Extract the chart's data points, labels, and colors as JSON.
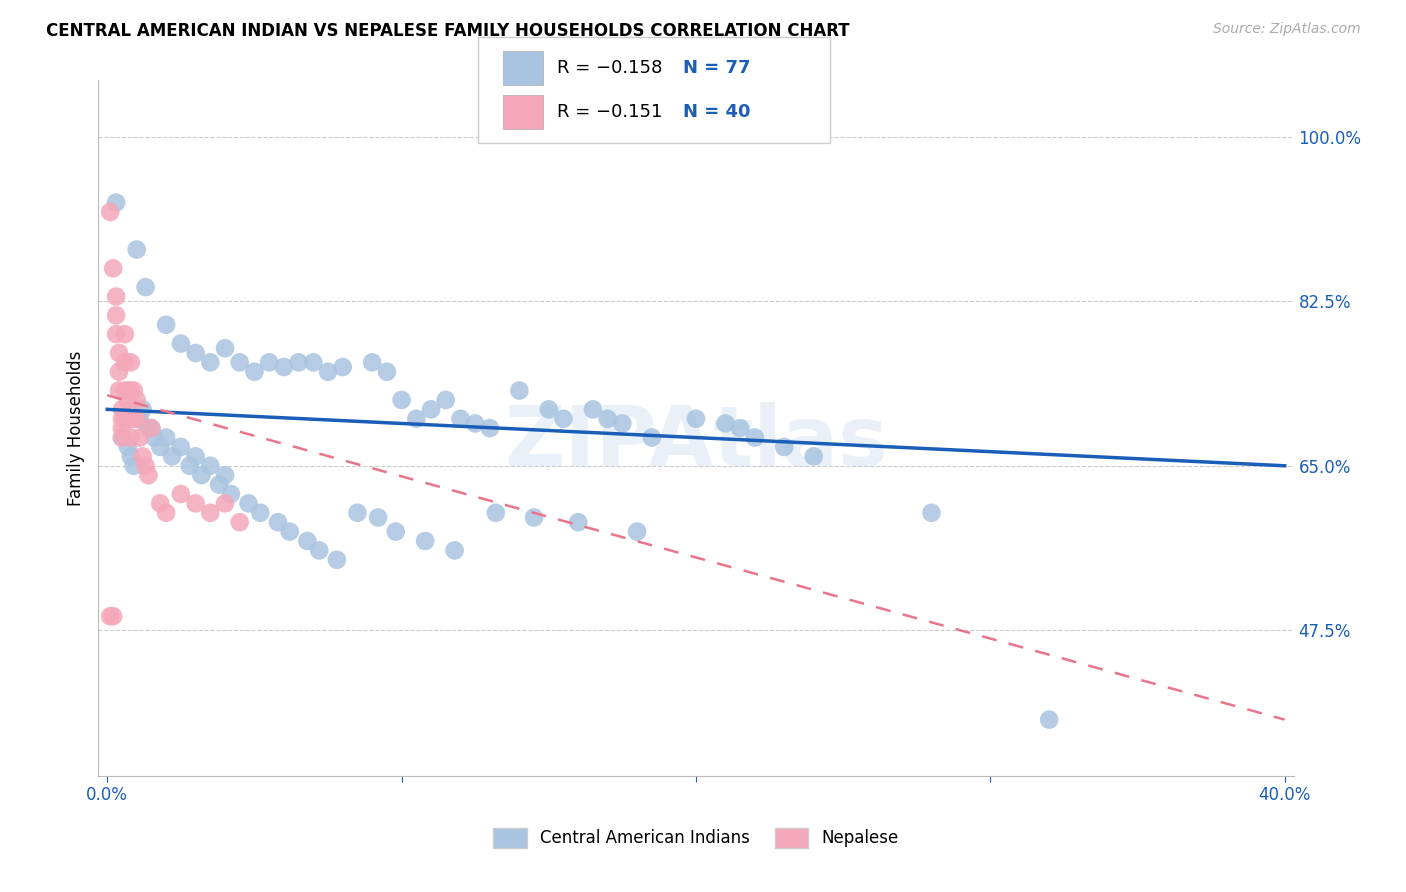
{
  "title": "CENTRAL AMERICAN INDIAN VS NEPALESE FAMILY HOUSEHOLDS CORRELATION CHART",
  "source": "Source: ZipAtlas.com",
  "ylabel": "Family Households",
  "legend_r_blue": "R = −0.158",
  "legend_n_blue": "N = 77",
  "legend_r_pink": "R = −0.151",
  "legend_n_pink": "N = 40",
  "legend_label_blue": "Central American Indians",
  "legend_label_pink": "Nepalese",
  "xlim": [
    -0.003,
    0.403
  ],
  "ylim": [
    0.32,
    1.06
  ],
  "yticks": [
    0.475,
    0.65,
    0.825,
    1.0
  ],
  "ytick_labels": [
    "47.5%",
    "65.0%",
    "82.5%",
    "100.0%"
  ],
  "xticks": [
    0.0,
    0.1,
    0.2,
    0.3,
    0.4
  ],
  "xtick_labels": [
    "0.0%",
    "",
    "",
    "",
    "40.0%"
  ],
  "blue_color": "#a8c4e0",
  "pink_color": "#f4a7b9",
  "line_blue": "#1a5eb8",
  "line_pink": "#e8758a",
  "blue_scatter_x": [
    0.003,
    0.01,
    0.013,
    0.02,
    0.025,
    0.03,
    0.035,
    0.04,
    0.045,
    0.05,
    0.055,
    0.06,
    0.065,
    0.07,
    0.075,
    0.08,
    0.09,
    0.095,
    0.1,
    0.105,
    0.11,
    0.115,
    0.12,
    0.125,
    0.13,
    0.14,
    0.15,
    0.155,
    0.165,
    0.17,
    0.175,
    0.185,
    0.2,
    0.21,
    0.215,
    0.22,
    0.23,
    0.24,
    0.01,
    0.015,
    0.02,
    0.025,
    0.03,
    0.035,
    0.04,
    0.005,
    0.007,
    0.008,
    0.009,
    0.011,
    0.012,
    0.014,
    0.016,
    0.018,
    0.022,
    0.028,
    0.032,
    0.038,
    0.042,
    0.048,
    0.052,
    0.058,
    0.062,
    0.068,
    0.072,
    0.078,
    0.085,
    0.092,
    0.098,
    0.108,
    0.118,
    0.132,
    0.145,
    0.16,
    0.18,
    0.28,
    0.32
  ],
  "blue_scatter_y": [
    0.93,
    0.88,
    0.84,
    0.8,
    0.78,
    0.77,
    0.76,
    0.775,
    0.76,
    0.75,
    0.76,
    0.755,
    0.76,
    0.76,
    0.75,
    0.755,
    0.76,
    0.75,
    0.72,
    0.7,
    0.71,
    0.72,
    0.7,
    0.695,
    0.69,
    0.73,
    0.71,
    0.7,
    0.71,
    0.7,
    0.695,
    0.68,
    0.7,
    0.695,
    0.69,
    0.68,
    0.67,
    0.66,
    0.7,
    0.69,
    0.68,
    0.67,
    0.66,
    0.65,
    0.64,
    0.68,
    0.67,
    0.66,
    0.65,
    0.7,
    0.71,
    0.69,
    0.68,
    0.67,
    0.66,
    0.65,
    0.64,
    0.63,
    0.62,
    0.61,
    0.6,
    0.59,
    0.58,
    0.57,
    0.56,
    0.55,
    0.6,
    0.595,
    0.58,
    0.57,
    0.56,
    0.6,
    0.595,
    0.59,
    0.58,
    0.6,
    0.38
  ],
  "pink_scatter_x": [
    0.001,
    0.001,
    0.002,
    0.002,
    0.003,
    0.003,
    0.003,
    0.004,
    0.004,
    0.004,
    0.005,
    0.005,
    0.005,
    0.005,
    0.006,
    0.006,
    0.006,
    0.006,
    0.007,
    0.007,
    0.007,
    0.008,
    0.008,
    0.008,
    0.009,
    0.009,
    0.01,
    0.01,
    0.011,
    0.012,
    0.013,
    0.014,
    0.015,
    0.018,
    0.02,
    0.025,
    0.03,
    0.035,
    0.04,
    0.045
  ],
  "pink_scatter_y": [
    0.92,
    0.49,
    0.86,
    0.49,
    0.83,
    0.81,
    0.79,
    0.77,
    0.75,
    0.73,
    0.71,
    0.7,
    0.69,
    0.68,
    0.79,
    0.76,
    0.73,
    0.7,
    0.73,
    0.72,
    0.7,
    0.76,
    0.73,
    0.68,
    0.73,
    0.7,
    0.72,
    0.7,
    0.68,
    0.66,
    0.65,
    0.64,
    0.69,
    0.61,
    0.6,
    0.62,
    0.61,
    0.6,
    0.61,
    0.59
  ],
  "blue_line_x": [
    0.0,
    0.4
  ],
  "blue_line_y": [
    0.71,
    0.65
  ],
  "pink_line_x": [
    0.0,
    0.4
  ],
  "pink_line_y": [
    0.725,
    0.38
  ]
}
